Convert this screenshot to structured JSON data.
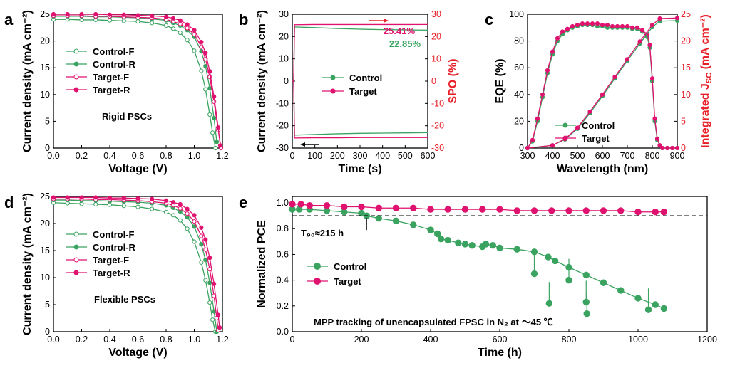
{
  "colors": {
    "control": "#3aa360",
    "target": "#e0126f",
    "secondary_axis": "#e8202a"
  },
  "chart_data": [
    {
      "panel": "a",
      "type": "line",
      "xlabel": "Voltage (V)",
      "ylabel": "Current density (mA cm⁻²)",
      "xlim": [
        0,
        1.2
      ],
      "ylim": [
        0,
        26
      ],
      "xticks": [
        "0.0",
        "0.2",
        "0.4",
        "0.6",
        "0.8",
        "1.0",
        "1.2"
      ],
      "yticks": [
        "0",
        "5",
        "10",
        "15",
        "20",
        "25"
      ],
      "annotation": "Rigid PSCs",
      "legend": [
        "Control-F",
        "Control-R",
        "Target-F",
        "Target-R"
      ],
      "series": [
        {
          "name": "Control-F",
          "color": "#3aa360",
          "marker": "open",
          "x": [
            0,
            0.1,
            0.2,
            0.3,
            0.4,
            0.5,
            0.6,
            0.7,
            0.8,
            0.85,
            0.9,
            0.95,
            1.0,
            1.05,
            1.08,
            1.11,
            1.13,
            1.15
          ],
          "y": [
            25.0,
            25.0,
            24.9,
            24.9,
            24.8,
            24.7,
            24.6,
            24.3,
            23.8,
            23.2,
            22.4,
            21.0,
            18.9,
            15.0,
            11.4,
            6.5,
            3.0,
            0
          ]
        },
        {
          "name": "Control-R",
          "color": "#3aa360",
          "marker": "filled",
          "x": [
            0,
            0.1,
            0.2,
            0.3,
            0.4,
            0.5,
            0.6,
            0.7,
            0.8,
            0.85,
            0.9,
            0.95,
            1.0,
            1.05,
            1.08,
            1.11,
            1.14,
            1.16
          ],
          "y": [
            25.6,
            25.6,
            25.6,
            25.5,
            25.5,
            25.4,
            25.3,
            25.1,
            24.8,
            24.3,
            23.8,
            22.9,
            21.6,
            18.8,
            15.9,
            11.6,
            5.8,
            1.2
          ]
        },
        {
          "name": "Target-F",
          "color": "#e0126f",
          "marker": "open",
          "x": [
            0,
            0.1,
            0.2,
            0.3,
            0.4,
            0.5,
            0.6,
            0.7,
            0.8,
            0.85,
            0.9,
            0.95,
            1.0,
            1.05,
            1.08,
            1.11,
            1.14,
            1.17,
            1.19
          ],
          "y": [
            25.7,
            25.7,
            25.7,
            25.6,
            25.6,
            25.5,
            25.4,
            25.3,
            25.0,
            24.6,
            24.1,
            23.3,
            22.1,
            19.7,
            17.3,
            13.8,
            9.0,
            3.5,
            0
          ]
        },
        {
          "name": "Target-R",
          "color": "#e0126f",
          "marker": "filled",
          "x": [
            0,
            0.1,
            0.2,
            0.3,
            0.4,
            0.5,
            0.6,
            0.7,
            0.8,
            0.85,
            0.9,
            0.95,
            1.0,
            1.05,
            1.08,
            1.11,
            1.14,
            1.17,
            1.185
          ],
          "y": [
            26.0,
            26.0,
            26.0,
            26.0,
            25.9,
            25.9,
            25.8,
            25.7,
            25.5,
            25.2,
            24.8,
            24.0,
            22.9,
            20.6,
            18.5,
            14.9,
            10.0,
            4.0,
            0.5
          ]
        }
      ]
    },
    {
      "panel": "b",
      "type": "line",
      "xlabel": "Time (s)",
      "ylabel": "Current density (mA cm⁻²)",
      "y2label": "SPO (%)",
      "xlim": [
        0,
        600
      ],
      "ylim": [
        -30,
        30
      ],
      "y2lim": [
        -30,
        30
      ],
      "xticks": [
        "0",
        "100",
        "200",
        "300",
        "400",
        "500",
        "600"
      ],
      "yticks": [
        "-30",
        "-20",
        "-10",
        "0",
        "10",
        "20",
        "30"
      ],
      "y2ticks": [
        "-30",
        "-20",
        "-10",
        "0",
        "10",
        "20",
        "30"
      ],
      "annotations": [
        "25.41%",
        "22.85%"
      ],
      "legend": [
        "Control",
        "Target"
      ],
      "series": [
        {
          "name": "Control",
          "axis": "left",
          "color": "#3aa360",
          "x": [
            0,
            6,
            10,
            100,
            200,
            300,
            400,
            500,
            600
          ],
          "y": [
            0,
            0,
            -24.2,
            -23.9,
            -23.6,
            -23.4,
            -23.3,
            -23.2,
            -23.1
          ]
        },
        {
          "name": "Target",
          "axis": "left",
          "color": "#e0126f",
          "x": [
            0,
            6,
            10,
            100,
            200,
            300,
            400,
            500,
            600
          ],
          "y": [
            0,
            0,
            -25.5,
            -25.4,
            -25.4,
            -25.3,
            -25.3,
            -25.3,
            -25.3
          ]
        },
        {
          "name": "Control",
          "axis": "right",
          "color": "#3aa360",
          "x": [
            0,
            6,
            10,
            100,
            200,
            300,
            400,
            500,
            600
          ],
          "y": [
            0,
            0,
            24.3,
            24.0,
            23.6,
            23.3,
            23.1,
            23.0,
            22.85
          ]
        },
        {
          "name": "Target",
          "axis": "right",
          "color": "#e0126f",
          "x": [
            0,
            6,
            10,
            100,
            200,
            300,
            400,
            500,
            600
          ],
          "y": [
            0,
            0,
            25.3,
            25.4,
            25.4,
            25.4,
            25.4,
            25.4,
            25.41
          ]
        }
      ]
    },
    {
      "panel": "c",
      "type": "line",
      "xlabel": "Wavelength (nm)",
      "ylabel": "EQE (%)",
      "y2label": "Integrated J",
      "y2label_sub": "SC",
      "y2label_unit": " (mA cm⁻²)",
      "xlim": [
        300,
        900
      ],
      "ylim": [
        0,
        100
      ],
      "y2lim": [
        0,
        25
      ],
      "xticks": [
        "300",
        "400",
        "500",
        "600",
        "700",
        "800",
        "900"
      ],
      "yticks": [
        "0",
        "20",
        "40",
        "60",
        "80",
        "100"
      ],
      "y2ticks": [
        "0",
        "5",
        "10",
        "15",
        "20",
        "25"
      ],
      "legend": [
        "Control",
        "Target"
      ],
      "series": [
        {
          "name": "Control",
          "axis": "left",
          "color": "#3aa360",
          "x": [
            300,
            320,
            340,
            360,
            380,
            400,
            420,
            440,
            460,
            480,
            500,
            520,
            540,
            560,
            580,
            600,
            620,
            640,
            660,
            680,
            700,
            720,
            740,
            760,
            780,
            790,
            800,
            810,
            820,
            830,
            840,
            860,
            880,
            900
          ],
          "y": [
            0,
            5,
            20,
            38,
            56,
            70,
            80,
            85,
            88,
            90,
            91,
            92,
            92,
            92,
            91,
            91,
            90,
            90,
            90,
            90,
            90,
            89,
            89,
            87,
            83,
            75,
            50,
            20,
            6,
            2,
            0,
            0,
            0,
            0
          ]
        },
        {
          "name": "Target",
          "axis": "left",
          "color": "#e0126f",
          "x": [
            300,
            320,
            340,
            360,
            380,
            400,
            420,
            440,
            460,
            480,
            500,
            520,
            540,
            560,
            580,
            600,
            620,
            640,
            660,
            680,
            700,
            720,
            740,
            760,
            780,
            790,
            800,
            810,
            820,
            830,
            840,
            860,
            880,
            900
          ],
          "y": [
            0,
            6,
            22,
            40,
            58,
            72,
            82,
            87,
            89,
            91,
            92,
            93,
            93,
            93,
            93,
            92,
            92,
            91,
            91,
            91,
            91,
            90,
            90,
            88,
            85,
            77,
            52,
            22,
            7,
            2,
            0,
            0,
            0,
            0
          ]
        },
        {
          "name": "Control",
          "axis": "right",
          "color": "#3aa360",
          "x": [
            300,
            400,
            450,
            500,
            550,
            600,
            650,
            700,
            750,
            800,
            830,
            900
          ],
          "y": [
            0,
            0.5,
            1.6,
            3.6,
            6.5,
            9.7,
            13.0,
            16.3,
            19.5,
            22.6,
            23.7,
            23.8
          ]
        },
        {
          "name": "Target",
          "axis": "right",
          "color": "#e0126f",
          "x": [
            300,
            400,
            450,
            500,
            550,
            600,
            650,
            700,
            750,
            800,
            830,
            900
          ],
          "y": [
            0,
            0.5,
            1.7,
            3.8,
            6.8,
            10.0,
            13.3,
            16.6,
            19.9,
            23.0,
            24.2,
            24.3
          ]
        }
      ]
    },
    {
      "panel": "d",
      "type": "line",
      "xlabel": "Voltage (V)",
      "ylabel": "Current density (mA cm⁻²)",
      "xlim": [
        0,
        1.2
      ],
      "ylim": [
        0,
        26
      ],
      "xticks": [
        "0.0",
        "0.2",
        "0.4",
        "0.6",
        "0.8",
        "1.0",
        "1.2"
      ],
      "yticks": [
        "0",
        "5",
        "10",
        "15",
        "20",
        "25"
      ],
      "annotation": "Flexible PSCs",
      "legend": [
        "Control-F",
        "Control-R",
        "Target-F",
        "Target-R"
      ],
      "series": [
        {
          "name": "Control-F",
          "color": "#3aa360",
          "marker": "open",
          "x": [
            0,
            0.1,
            0.2,
            0.3,
            0.4,
            0.5,
            0.6,
            0.7,
            0.8,
            0.85,
            0.9,
            0.95,
            1.0,
            1.05,
            1.08,
            1.11,
            1.13,
            1.15
          ],
          "y": [
            24.8,
            24.7,
            24.6,
            24.5,
            24.4,
            24.2,
            24.0,
            23.6,
            23.0,
            22.4,
            21.4,
            19.8,
            17.3,
            13.3,
            9.9,
            5.6,
            2.3,
            0
          ]
        },
        {
          "name": "Control-R",
          "color": "#3aa360",
          "marker": "filled",
          "x": [
            0,
            0.1,
            0.2,
            0.3,
            0.4,
            0.5,
            0.6,
            0.7,
            0.8,
            0.85,
            0.9,
            0.95,
            1.0,
            1.05,
            1.08,
            1.11,
            1.14,
            1.16
          ],
          "y": [
            25.3,
            25.3,
            25.2,
            25.2,
            25.1,
            25.0,
            24.9,
            24.7,
            24.3,
            23.8,
            23.1,
            22.0,
            20.2,
            16.8,
            13.8,
            9.4,
            3.9,
            0
          ]
        },
        {
          "name": "Target-F",
          "color": "#e0126f",
          "marker": "open",
          "x": [
            0,
            0.1,
            0.2,
            0.3,
            0.4,
            0.5,
            0.6,
            0.7,
            0.8,
            0.85,
            0.9,
            0.95,
            1.0,
            1.05,
            1.08,
            1.11,
            1.14,
            1.16,
            1.17
          ],
          "y": [
            25.5,
            25.5,
            25.5,
            25.4,
            25.4,
            25.3,
            25.2,
            25.0,
            24.7,
            24.3,
            23.7,
            22.7,
            21.2,
            18.4,
            15.8,
            12.0,
            6.9,
            2.6,
            0.3
          ]
        },
        {
          "name": "Target-R",
          "color": "#e0126f",
          "marker": "filled",
          "x": [
            0,
            0.1,
            0.2,
            0.3,
            0.4,
            0.5,
            0.6,
            0.7,
            0.8,
            0.85,
            0.9,
            0.95,
            1.0,
            1.05,
            1.08,
            1.11,
            1.14,
            1.17,
            1.18
          ],
          "y": [
            25.8,
            25.8,
            25.8,
            25.8,
            25.7,
            25.7,
            25.6,
            25.5,
            25.2,
            24.9,
            24.5,
            23.6,
            22.4,
            20.0,
            17.7,
            14.2,
            9.2,
            3.2,
            0.8
          ]
        }
      ]
    },
    {
      "panel": "e",
      "type": "scatter",
      "xlabel": "Time (h)",
      "ylabel": "Normalized PCE",
      "xlim": [
        0,
        1200
      ],
      "ylim": [
        0,
        1.05
      ],
      "xticks": [
        "0",
        "200",
        "400",
        "600",
        "800",
        "1000",
        "1200"
      ],
      "yticks": [
        "0.0",
        "0.2",
        "0.4",
        "0.6",
        "0.8",
        "1.0"
      ],
      "reference_line": 0.9,
      "annotation_t90": "T₉₀≈215 h",
      "t90_x": 215,
      "caption": "MPP tracking of unencapsulated FPSC in N₂ at ～45 ℃",
      "legend": [
        "Control",
        "Target"
      ],
      "series": [
        {
          "name": "Control",
          "color": "#3aa360",
          "x": [
            0,
            20,
            50,
            100,
            150,
            200,
            215,
            250,
            300,
            350,
            400,
            420,
            430,
            450,
            480,
            500,
            520,
            550,
            560,
            580,
            600,
            650,
            700,
            740,
            760,
            800,
            850,
            900,
            950,
            1000,
            1050,
            1075
          ],
          "y": [
            0.95,
            0.95,
            0.95,
            0.94,
            0.93,
            0.92,
            0.9,
            0.88,
            0.86,
            0.83,
            0.79,
            0.76,
            0.72,
            0.71,
            0.69,
            0.68,
            0.67,
            0.66,
            0.68,
            0.67,
            0.65,
            0.64,
            0.62,
            0.58,
            0.55,
            0.5,
            0.44,
            0.38,
            0.32,
            0.26,
            0.21,
            0.18
          ]
        },
        {
          "name": "Control",
          "color": "#3aa360",
          "outliers": true,
          "x": [
            700,
            743,
            800,
            850,
            852,
            1030
          ],
          "y": [
            0.45,
            0.22,
            0.4,
            0.23,
            0.14,
            0.17
          ]
        },
        {
          "name": "Target",
          "color": "#e0126f",
          "x": [
            0,
            25,
            50,
            100,
            150,
            200,
            250,
            300,
            350,
            400,
            450,
            500,
            550,
            600,
            650,
            700,
            750,
            800,
            850,
            900,
            950,
            1000,
            1050,
            1075
          ],
          "y": [
            0.99,
            0.99,
            0.98,
            0.98,
            0.97,
            0.97,
            0.96,
            0.96,
            0.96,
            0.95,
            0.95,
            0.95,
            0.95,
            0.95,
            0.94,
            0.94,
            0.94,
            0.94,
            0.94,
            0.94,
            0.94,
            0.93,
            0.93,
            0.93
          ]
        }
      ]
    }
  ]
}
